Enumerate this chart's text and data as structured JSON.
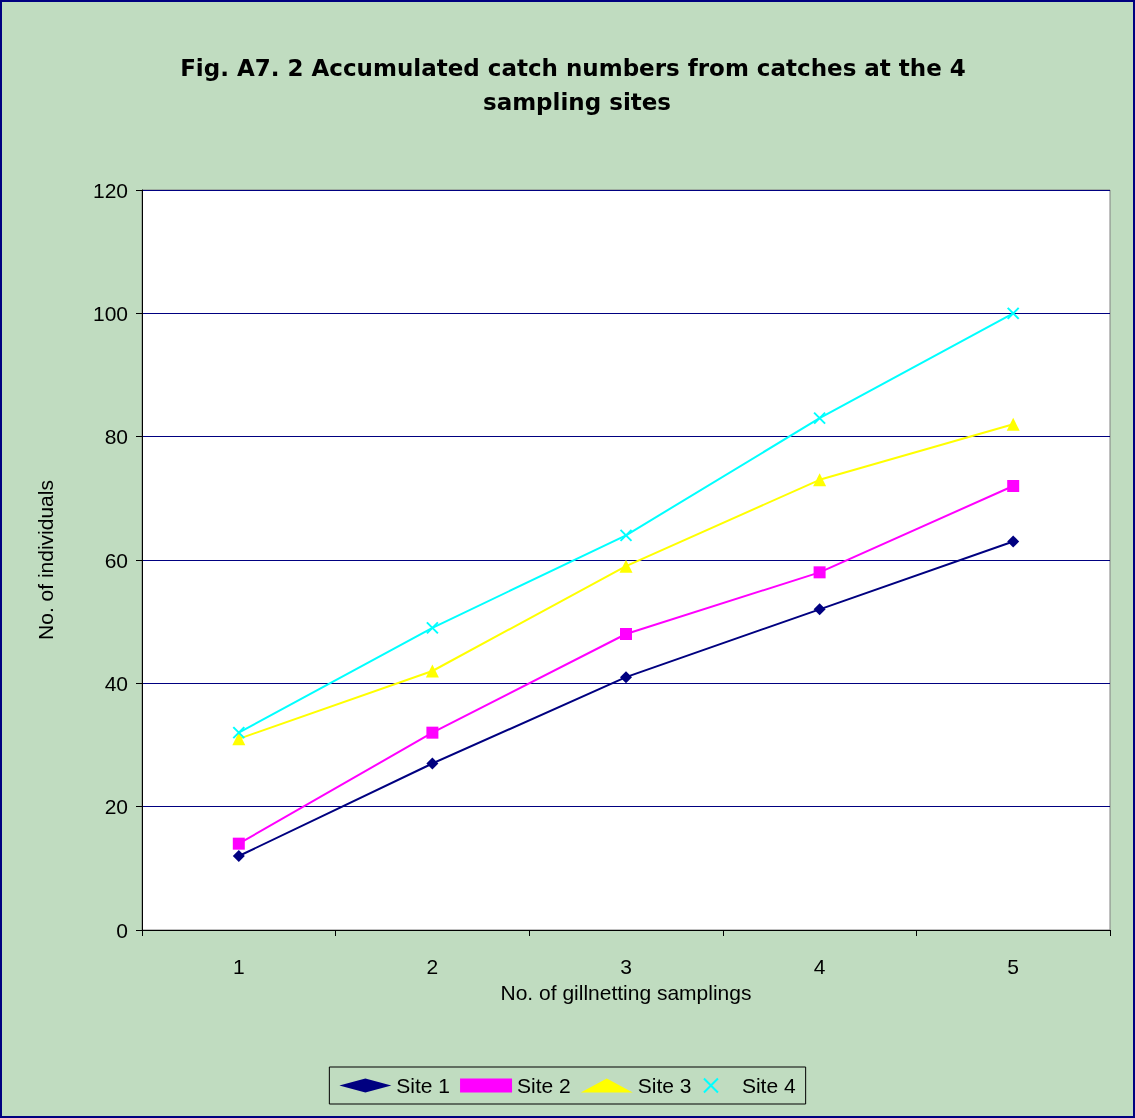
{
  "chart_data": {
    "type": "line",
    "title": "Fig. A7. 2 Accumulated catch numbers from catches at the 4 sampling sites",
    "xlabel": "No. of gillnetting samplings",
    "ylabel": "No. of individuals",
    "categories": [
      "1",
      "2",
      "3",
      "4",
      "5"
    ],
    "series": [
      {
        "name": "Site 1",
        "color": "#000080",
        "marker": "diamond",
        "values": [
          12,
          27,
          41,
          52,
          63
        ]
      },
      {
        "name": "Site 2",
        "color": "#ff00ff",
        "marker": "square",
        "values": [
          14,
          32,
          48,
          58,
          72
        ]
      },
      {
        "name": "Site 3",
        "color": "#ffff00",
        "marker": "triangle",
        "values": [
          31,
          42,
          59,
          73,
          82
        ]
      },
      {
        "name": "Site 4",
        "color": "#00ffff",
        "marker": "cross",
        "values": [
          32,
          49,
          64,
          83,
          100
        ]
      }
    ],
    "ylim": [
      0,
      120
    ],
    "yticks": [
      0,
      20,
      40,
      60,
      80,
      100,
      120
    ],
    "grid": "y",
    "legend": "bottom",
    "line_style": "solid"
  }
}
